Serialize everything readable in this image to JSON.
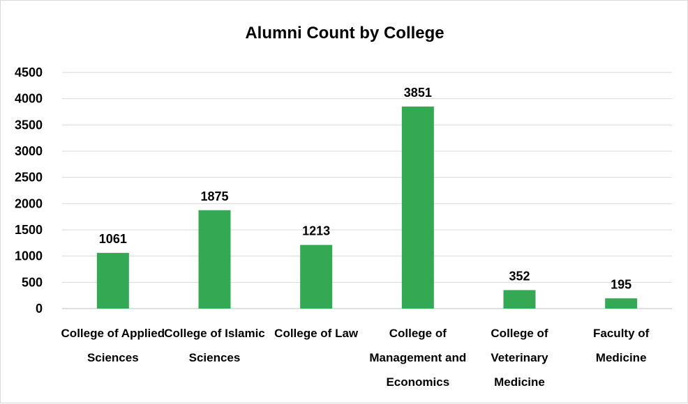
{
  "chart_data": {
    "type": "bar",
    "title": "Alumni Count by College",
    "categories": [
      [
        "College of Applied",
        "Sciences"
      ],
      [
        "College of Islamic",
        "Sciences"
      ],
      [
        "College of Law"
      ],
      [
        "College of",
        "Management and",
        "Economics"
      ],
      [
        "College of",
        "Veterinary",
        "Medicine"
      ],
      [
        "Faculty of",
        "Medicine"
      ]
    ],
    "values": [
      1061,
      1875,
      1213,
      3851,
      352,
      195
    ],
    "ylim": [
      0,
      4500
    ],
    "yticks": [
      0,
      500,
      1000,
      1500,
      2000,
      2500,
      3000,
      3500,
      4000,
      4500
    ],
    "grid": true,
    "legend": "none",
    "bar_color": "#34a853"
  }
}
